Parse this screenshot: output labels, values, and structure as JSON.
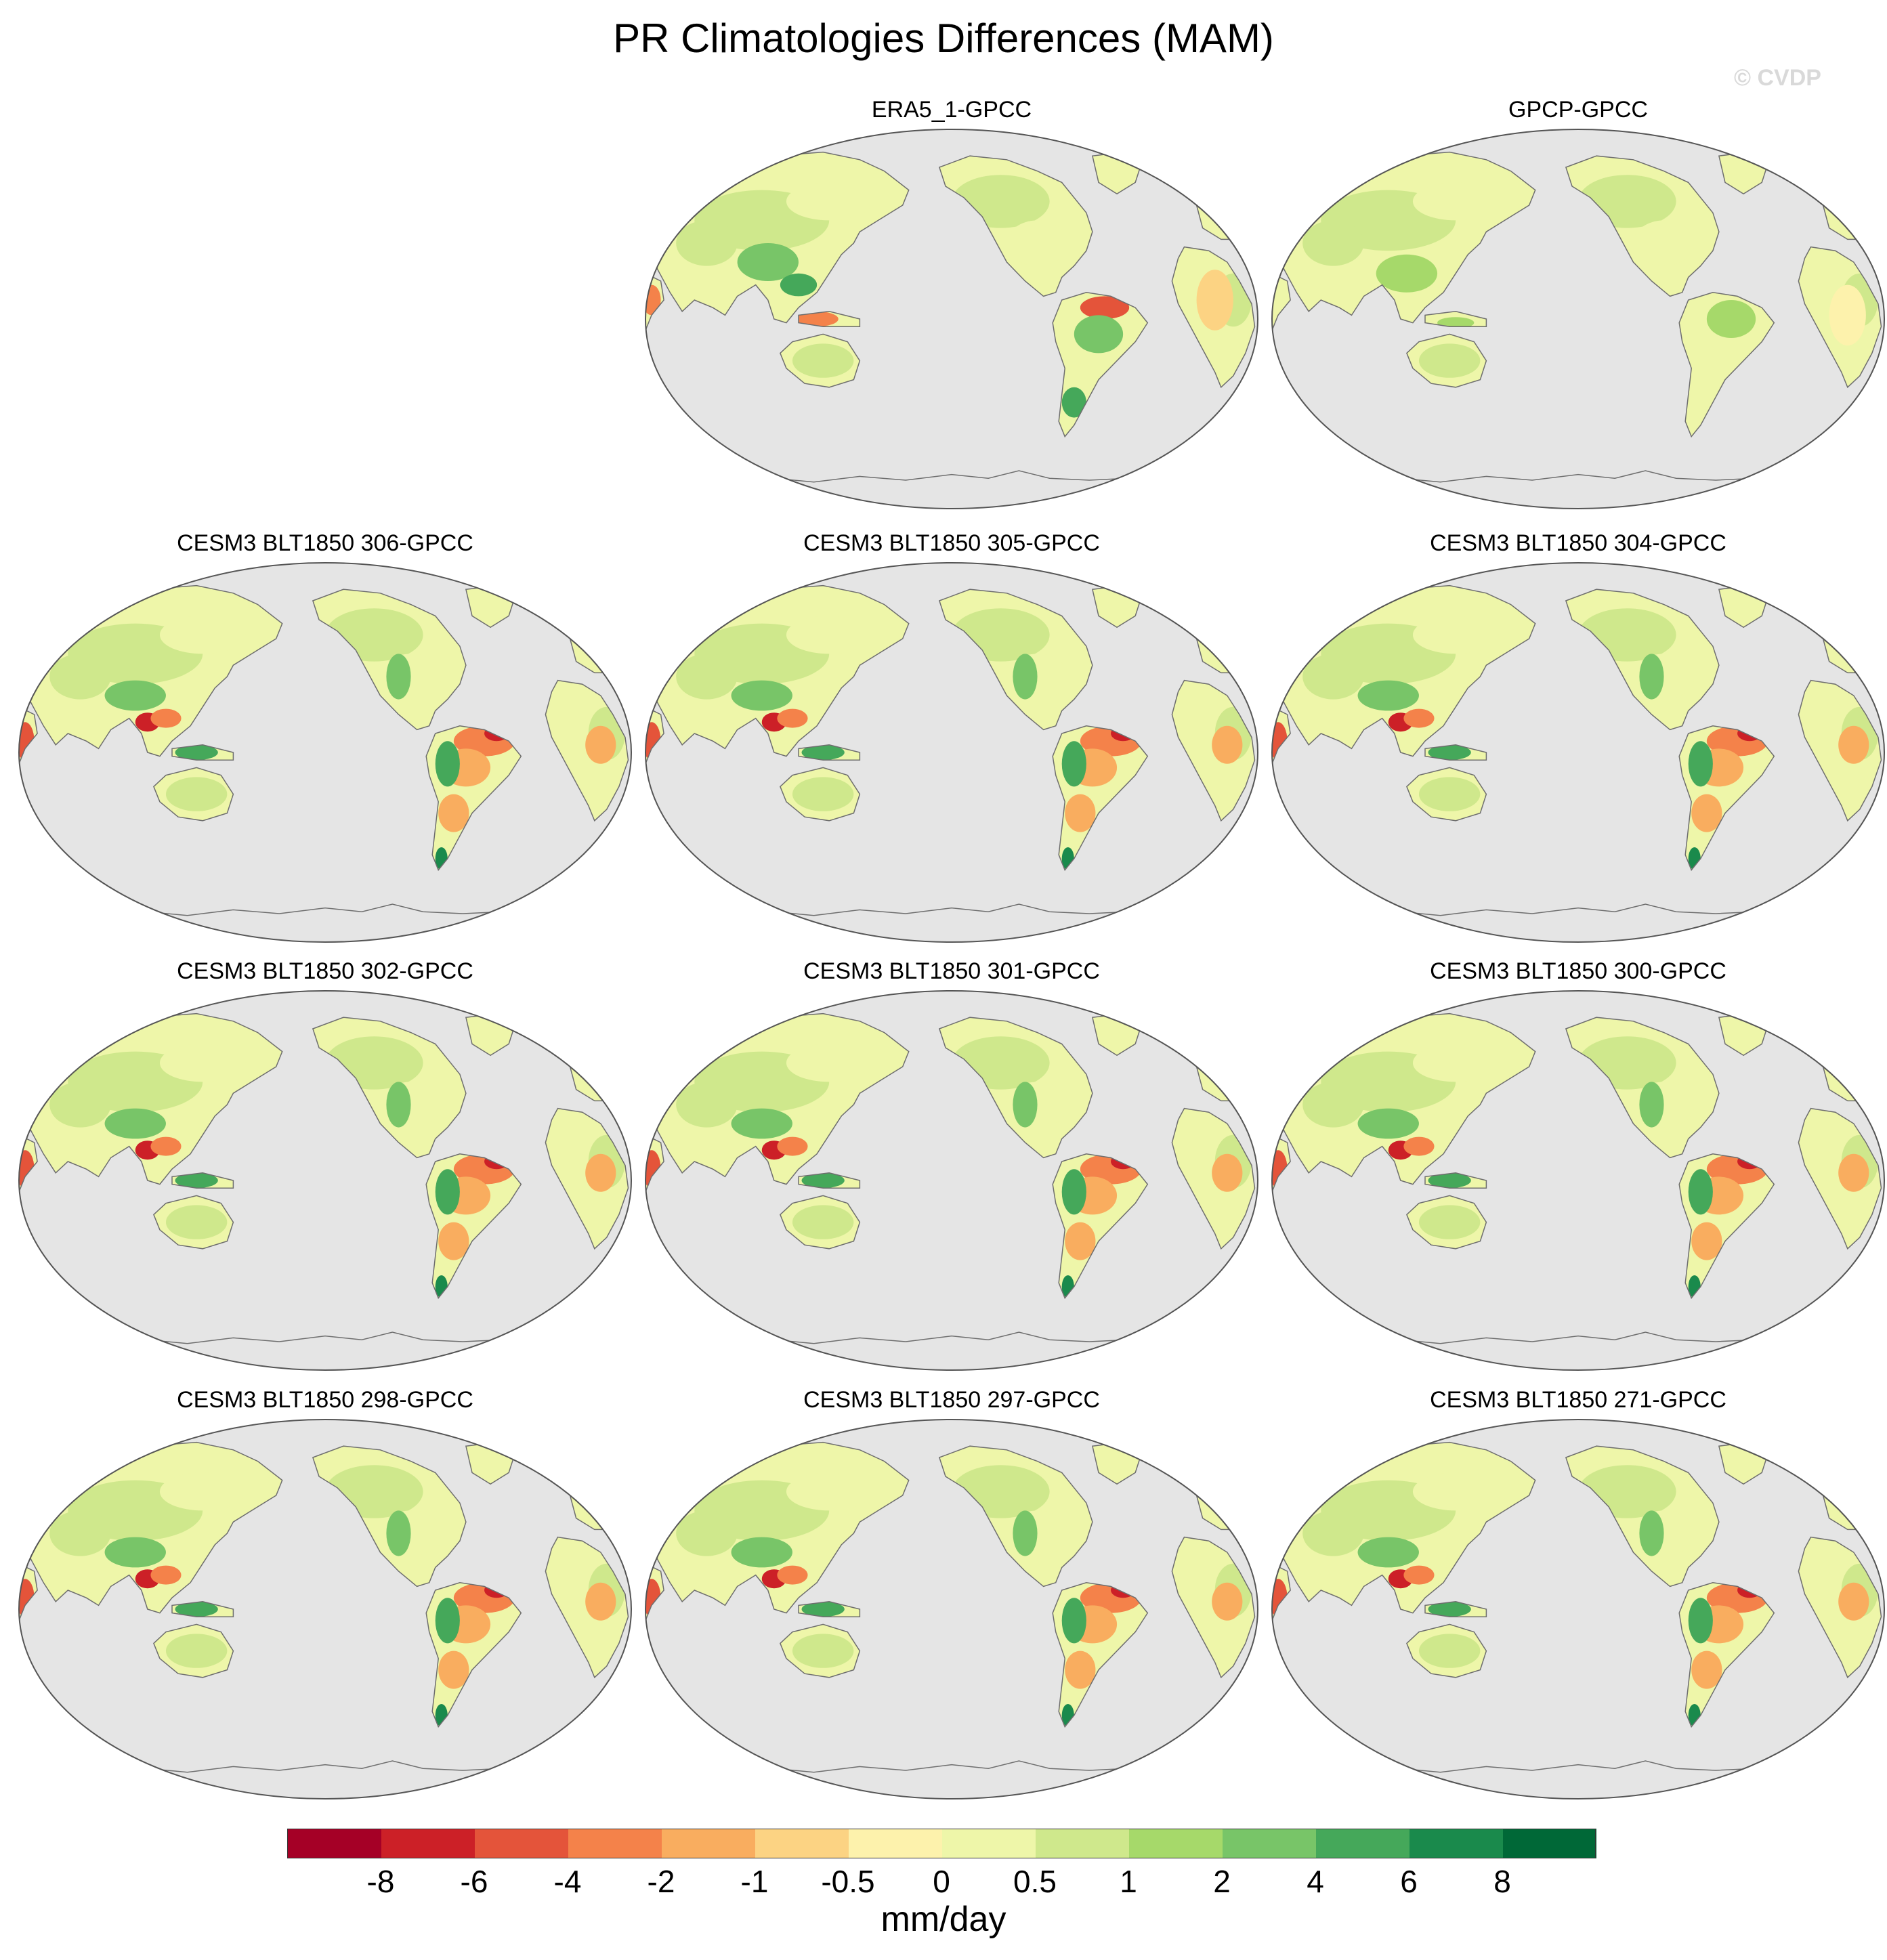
{
  "title": "PR Climatologies Differences (MAM)",
  "watermark": "© CVDP",
  "panels": [
    {
      "label": "ERA5_1-GPCC",
      "style": "era5"
    },
    {
      "label": "GPCP-GPCC",
      "style": "gpcp"
    },
    {
      "label": "CESM3 BLT1850 306-GPCC",
      "style": "model"
    },
    {
      "label": "CESM3 BLT1850 305-GPCC",
      "style": "model"
    },
    {
      "label": "CESM3 BLT1850 304-GPCC",
      "style": "model"
    },
    {
      "label": "CESM3 BLT1850 302-GPCC",
      "style": "model"
    },
    {
      "label": "CESM3 BLT1850 301-GPCC",
      "style": "model"
    },
    {
      "label": "CESM3 BLT1850 300-GPCC",
      "style": "model"
    },
    {
      "label": "CESM3 BLT1850 298-GPCC",
      "style": "model"
    },
    {
      "label": "CESM3 BLT1850 297-GPCC",
      "style": "model"
    },
    {
      "label": "CESM3 BLT1850 271-GPCC",
      "style": "model"
    }
  ],
  "colorbar": {
    "units": "mm/day",
    "tick_labels": [
      "-8",
      "-6",
      "-4",
      "-2",
      "-1",
      "-0.5",
      "0",
      "0.5",
      "1",
      "2",
      "4",
      "6",
      "8"
    ],
    "colors": [
      "#a50026",
      "#cc2027",
      "#e4543a",
      "#f4824a",
      "#f9ad5f",
      "#fcd383",
      "#fdf2ac",
      "#eef6a9",
      "#cfe88c",
      "#a6d96a",
      "#78c568",
      "#45a85a",
      "#1a8a4c",
      "#006837"
    ]
  },
  "ocean_color": "#e5e5e5",
  "coast_color": "#6e6e6e"
}
